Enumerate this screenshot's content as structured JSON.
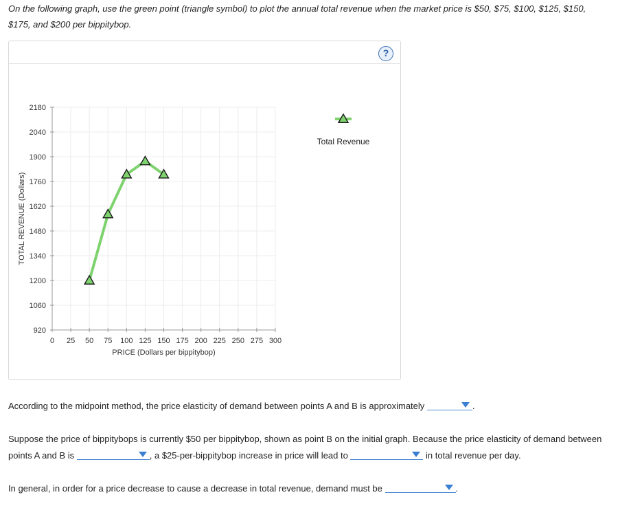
{
  "instructions": {
    "line1": "On the following graph, use the green point (triangle symbol) to plot the annual total revenue when the market price is $50, $75, $100, $125, $150,",
    "line2": "$175, and $200 per bippitybop."
  },
  "help_icon": "question-mark-icon",
  "help_label": "?",
  "chart_data": {
    "type": "line",
    "xlabel": "PRICE (Dollars per bippitybop)",
    "ylabel": "TOTAL REVENUE (Dollars)",
    "xlim": [
      0,
      300
    ],
    "ylim": [
      920,
      2180
    ],
    "xticks": [
      0,
      25,
      50,
      75,
      100,
      125,
      150,
      175,
      200,
      225,
      250,
      275,
      300
    ],
    "yticks": [
      920,
      1060,
      1200,
      1340,
      1480,
      1620,
      1760,
      1900,
      2040,
      2180
    ],
    "grid": true,
    "legend_position": "top-right",
    "series": [
      {
        "name": "Total Revenue",
        "color": "#7ed36f",
        "marker": "triangle",
        "x": [
          50,
          75,
          100,
          125,
          150
        ],
        "y": [
          1200,
          1575,
          1800,
          1875,
          1800
        ]
      }
    ]
  },
  "questions": {
    "q1_text": "According to the midpoint method, the price elasticity of demand between points A and B is approximately",
    "q1_value": "",
    "q1_end": ".",
    "q2_part1": "Suppose the price of bippitybops is currently $50 per bippitybop, shown as point B on the initial graph. Because the price elasticity of demand between",
    "q2_part2": "points A and B is",
    "q2_value_a": "",
    "q2_part3": ", a $25-per-bippitybop increase in price will lead to",
    "q2_value_b": "",
    "q2_part4": "in total revenue per day.",
    "q3_text": "In general, in order for a price decrease to cause a decrease in total revenue, demand must be",
    "q3_value": "",
    "q3_end": "."
  }
}
